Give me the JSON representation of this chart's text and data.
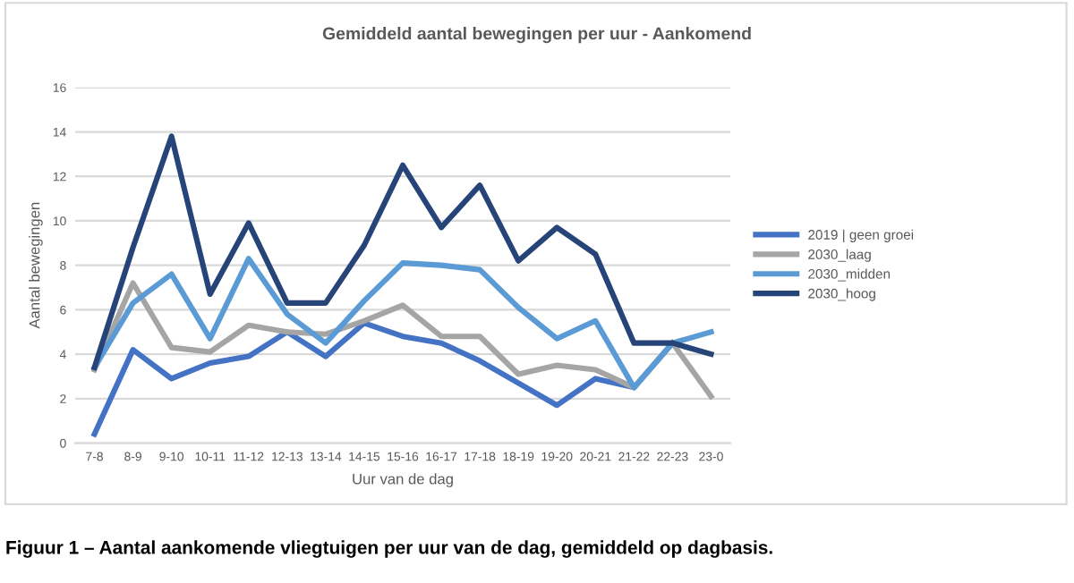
{
  "chart_data": {
    "type": "line",
    "title": "Gemiddeld aantal bewegingen per uur - Aankomend",
    "xlabel": "Uur van de dag",
    "ylabel": "Aantal bewegingen",
    "categories": [
      "7-8",
      "8-9",
      "9-10",
      "10-11",
      "11-12",
      "12-13",
      "13-14",
      "14-15",
      "15-16",
      "16-17",
      "17-18",
      "18-19",
      "19-20",
      "20-21",
      "21-22",
      "22-23",
      "23-0"
    ],
    "series": [
      {
        "name": "2019 | geen groei",
        "color": "#4472c4",
        "values": [
          0.4,
          4.2,
          2.9,
          3.6,
          3.9,
          5.0,
          3.9,
          5.4,
          4.8,
          4.5,
          3.7,
          2.7,
          1.7,
          2.9,
          2.5,
          4.5,
          null
        ]
      },
      {
        "name": "2030_laag",
        "color": "#a5a5a5",
        "values": [
          3.3,
          7.2,
          4.3,
          4.1,
          5.3,
          5.0,
          4.9,
          5.5,
          6.2,
          4.8,
          4.8,
          3.1,
          3.5,
          3.3,
          2.5,
          4.5,
          2.1
        ]
      },
      {
        "name": "2030_midden",
        "color": "#5b9bd5",
        "values": [
          3.4,
          6.3,
          7.6,
          4.7,
          8.3,
          5.8,
          4.5,
          6.4,
          8.1,
          8.0,
          7.8,
          6.1,
          4.7,
          5.5,
          2.5,
          4.5,
          5.0
        ]
      },
      {
        "name": "2030_hoog",
        "color": "#264478",
        "values": [
          3.4,
          8.8,
          13.8,
          6.7,
          9.9,
          6.3,
          6.3,
          8.9,
          12.5,
          9.7,
          11.6,
          8.2,
          9.7,
          8.5,
          4.5,
          4.5,
          4.0
        ]
      }
    ],
    "ylim": [
      0,
      16
    ],
    "yticks": [
      0,
      2,
      4,
      6,
      8,
      10,
      12,
      14,
      16
    ],
    "grid": "y",
    "legend": "right",
    "marker": "none",
    "line_style": "solid",
    "annotations": [
      "Figuur 1 – Aantal aankomende vliegtuigen per uur van de dag, gemiddeld op dagbasis."
    ]
  }
}
